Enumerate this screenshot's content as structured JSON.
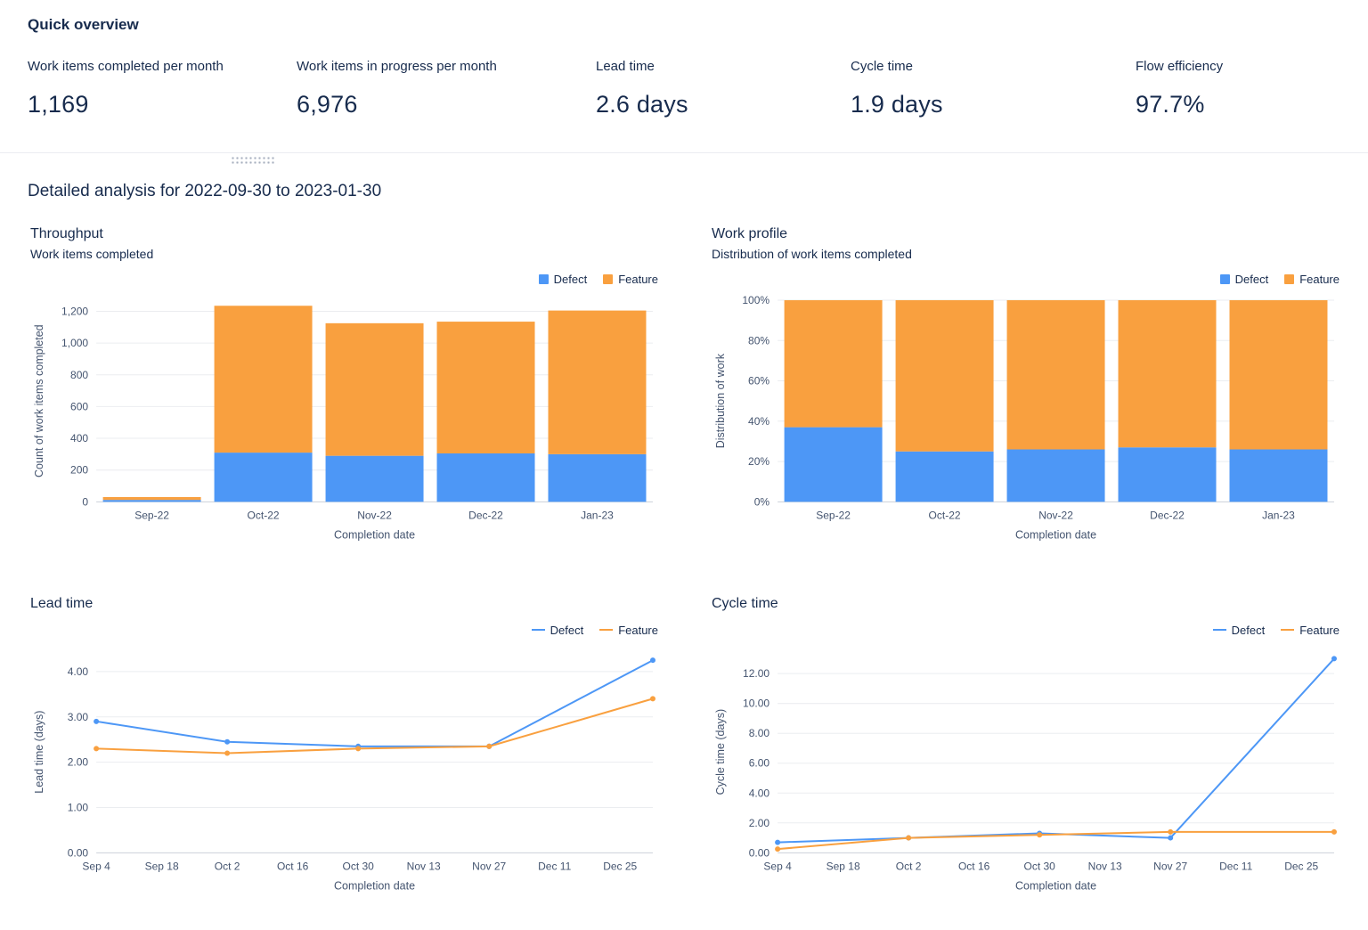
{
  "overview": {
    "title": "Quick overview",
    "kpis": [
      {
        "label": "Work items completed per month",
        "value": "1,169"
      },
      {
        "label": "Work items in progress per month",
        "value": "6,976"
      },
      {
        "label": "Lead time",
        "value": "2.6 days"
      },
      {
        "label": "Cycle time",
        "value": "1.9 days"
      },
      {
        "label": "Flow efficiency",
        "value": "97.7%"
      }
    ]
  },
  "detail": {
    "title": "Detailed analysis for 2022-09-30 to 2023-01-30"
  },
  "colors": {
    "defect": "#4D97F6",
    "feature": "#F9A03F",
    "grid": "#EBEDF0",
    "axis_text": "#44546F",
    "heading": "#172B4D"
  },
  "chart_data": [
    {
      "type": "bar",
      "stacked": true,
      "title": "Throughput",
      "subtitle": "Work items completed",
      "xlabel": "Completion date",
      "ylabel": "Count of work items completed",
      "categories": [
        "Sep-22",
        "Oct-22",
        "Nov-22",
        "Dec-22",
        "Jan-23"
      ],
      "series": [
        {
          "name": "Defect",
          "color": "#4D97F6",
          "values": [
            12,
            310,
            290,
            305,
            300
          ]
        },
        {
          "name": "Feature",
          "color": "#F9A03F",
          "values": [
            18,
            925,
            835,
            830,
            905
          ]
        }
      ],
      "ylim": [
        0,
        1270
      ],
      "yticks": [
        0,
        200,
        400,
        600,
        800,
        1000,
        1200
      ],
      "ytick_format": "thousands",
      "legend_position": "top-right",
      "grid": true
    },
    {
      "type": "bar",
      "stacked": true,
      "title": "Work profile",
      "subtitle": "Distribution of work items completed",
      "xlabel": "Completion date",
      "ylabel": "Distribution of work",
      "categories": [
        "Sep-22",
        "Oct-22",
        "Nov-22",
        "Dec-22",
        "Jan-23"
      ],
      "series": [
        {
          "name": "Defect",
          "color": "#4D97F6",
          "values": [
            37,
            25,
            26,
            27,
            26
          ]
        },
        {
          "name": "Feature",
          "color": "#F9A03F",
          "values": [
            63,
            75,
            74,
            73,
            74
          ]
        }
      ],
      "ylim": [
        0,
        100
      ],
      "yticks": [
        0,
        20,
        40,
        60,
        80,
        100
      ],
      "ytick_format": "percent",
      "legend_position": "top-right",
      "grid": true
    },
    {
      "type": "line",
      "title": "Lead time",
      "subtitle": "",
      "xlabel": "Completion date",
      "ylabel": "Lead time (days)",
      "xlim": [
        0,
        119
      ],
      "xticks": {
        "pos": [
          0,
          14,
          28,
          42,
          56,
          70,
          84,
          98,
          112
        ],
        "labels": [
          "Sep 4",
          "Sep 18",
          "Oct 2",
          "Oct 16",
          "Oct 30",
          "Nov 13",
          "Nov 27",
          "Dec 11",
          "Dec 25"
        ]
      },
      "series": [
        {
          "name": "Defect",
          "color": "#4D97F6",
          "points": [
            [
              0,
              2.9
            ],
            [
              28,
              2.45
            ],
            [
              56,
              2.35
            ],
            [
              84,
              2.35
            ],
            [
              119,
              4.25
            ]
          ]
        },
        {
          "name": "Feature",
          "color": "#F9A03F",
          "points": [
            [
              0,
              2.3
            ],
            [
              28,
              2.2
            ],
            [
              56,
              2.3
            ],
            [
              84,
              2.35
            ],
            [
              119,
              3.4
            ]
          ]
        }
      ],
      "ylim": [
        0,
        4.45
      ],
      "yticks": [
        0,
        1,
        2,
        3,
        4
      ],
      "ytick_format": "2dp",
      "legend_position": "top-right",
      "grid": true
    },
    {
      "type": "line",
      "title": "Cycle time",
      "subtitle": "",
      "xlabel": "Completion date",
      "ylabel": "Cycle time (days)",
      "xlim": [
        0,
        119
      ],
      "xticks": {
        "pos": [
          0,
          14,
          28,
          42,
          56,
          70,
          84,
          98,
          112
        ],
        "labels": [
          "Sep 4",
          "Sep 18",
          "Oct 2",
          "Oct 16",
          "Oct 30",
          "Nov 13",
          "Nov 27",
          "Dec 11",
          "Dec 25"
        ]
      },
      "series": [
        {
          "name": "Defect",
          "color": "#4D97F6",
          "points": [
            [
              0,
              0.7
            ],
            [
              28,
              1.0
            ],
            [
              56,
              1.3
            ],
            [
              84,
              1.0
            ],
            [
              119,
              13.0
            ]
          ]
        },
        {
          "name": "Feature",
          "color": "#F9A03F",
          "points": [
            [
              0,
              0.25
            ],
            [
              28,
              1.0
            ],
            [
              56,
              1.2
            ],
            [
              84,
              1.4
            ],
            [
              119,
              1.4
            ]
          ]
        }
      ],
      "ylim": [
        0,
        13.5
      ],
      "yticks": [
        0,
        2,
        4,
        6,
        8,
        10,
        12
      ],
      "ytick_format": "2dp",
      "legend_position": "top-right",
      "grid": true
    }
  ]
}
